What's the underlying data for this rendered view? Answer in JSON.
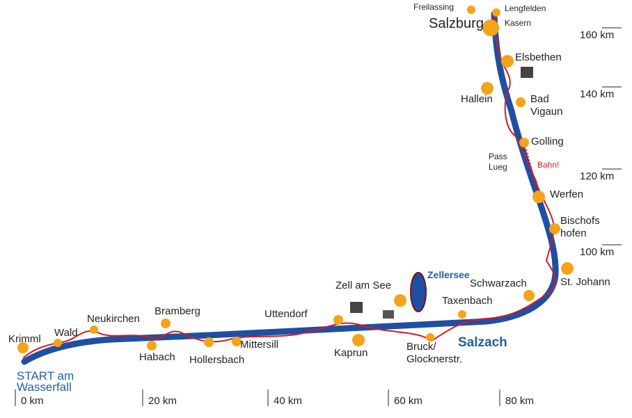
{
  "map": {
    "places": [
      {
        "lines": [
          "Krimml"
        ]
      },
      {
        "lines": [
          "Wald"
        ]
      },
      {
        "lines": [
          "Neukirchen"
        ]
      },
      {
        "lines": [
          "Bramberg"
        ]
      },
      {
        "lines": [
          "Habach"
        ]
      },
      {
        "lines": [
          "Hollersbach"
        ]
      },
      {
        "lines": [
          "Mittersill"
        ]
      },
      {
        "lines": [
          "Uttendorf"
        ]
      },
      {
        "lines": [
          "Kaprun"
        ]
      },
      {
        "lines": [
          "Zell am See"
        ]
      },
      {
        "lines": [
          "Bruck/",
          "Glocknerstr."
        ]
      },
      {
        "lines": [
          "Taxenbach"
        ]
      },
      {
        "lines": [
          "Schwarzach"
        ]
      },
      {
        "lines": [
          "St. Johann"
        ]
      },
      {
        "lines": [
          "Bischofs",
          "hofen"
        ]
      },
      {
        "lines": [
          "Werfen"
        ]
      },
      {
        "lines": [
          "Golling"
        ]
      },
      {
        "lines": [
          "Pass",
          "Lueg"
        ]
      },
      {
        "lines": [
          "Hallein"
        ]
      },
      {
        "lines": [
          "Bad",
          "Vigaun"
        ]
      },
      {
        "lines": [
          "Elsbethen"
        ]
      },
      {
        "lines": [
          "Salzburg"
        ]
      },
      {
        "lines": [
          "Freilassing"
        ]
      },
      {
        "lines": [
          "Lengfelden"
        ]
      },
      {
        "lines": [
          "Kasern"
        ]
      }
    ],
    "river": "Salzach",
    "lake": "Zellersee",
    "note": "Bahn!",
    "start": [
      "START am",
      "Wasserfall"
    ],
    "distances_right": [
      "160 km",
      "140 km",
      "120 km",
      "100 km"
    ],
    "distances_bottom": [
      "0 km",
      "20 km",
      "40 km",
      "60 km",
      "80 km"
    ]
  }
}
